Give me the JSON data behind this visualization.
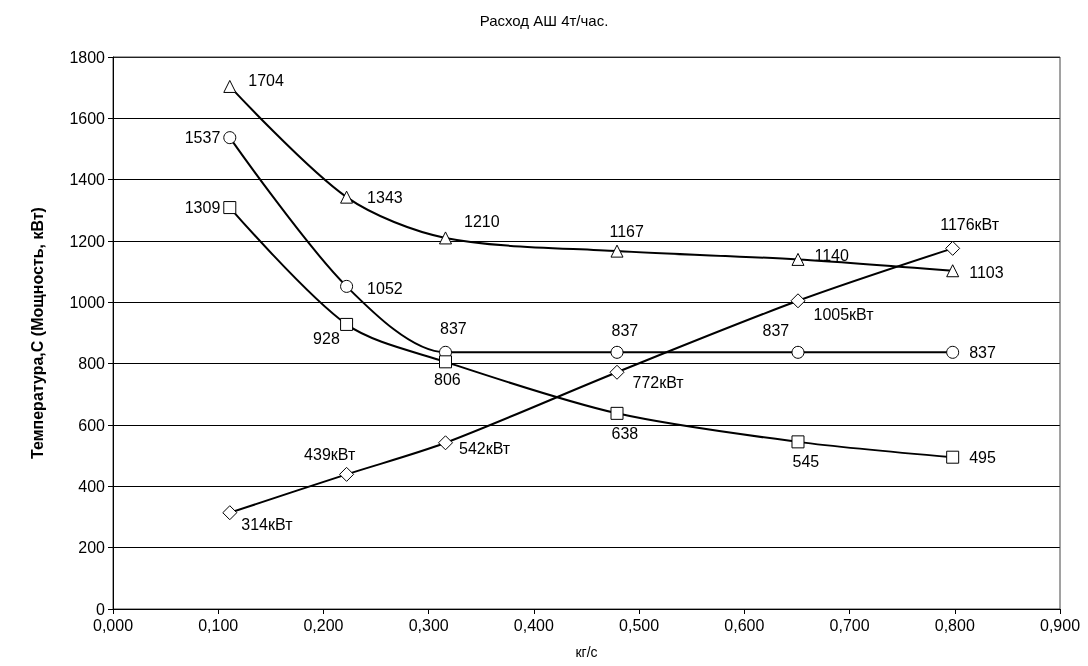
{
  "chart_data": {
    "type": "line",
    "title": "Расход АШ 4т/час.",
    "xlabel": "кг/с",
    "ylabel": "Температура,С (Мощность, кВт)",
    "x": [
      0.111,
      0.222,
      0.316,
      0.479,
      0.651,
      0.798
    ],
    "series": [
      {
        "color": "#000000",
        "marker": "triangle",
        "values": [
          1704,
          1343,
          1210,
          1167,
          1140,
          1103
        ],
        "value_labels": [
          "1704",
          "1343",
          "1210",
          "1167",
          "1140",
          "1103"
        ]
      },
      {
        "color": "#000000",
        "marker": "circle",
        "values": [
          1537,
          1052,
          837,
          837,
          837,
          837
        ],
        "value_labels": [
          "1537",
          "1052",
          "837",
          "837",
          "837",
          "837"
        ]
      },
      {
        "color": "#000000",
        "marker": "square",
        "values": [
          1309,
          928,
          806,
          638,
          545,
          495
        ],
        "value_labels": [
          "1309",
          "928",
          "806",
          "638",
          "545",
          "495"
        ]
      },
      {
        "color": "#000000",
        "marker": "diamond",
        "values": [
          314,
          439,
          542,
          772,
          1005,
          1176
        ],
        "value_labels": [
          "314кВт",
          "439кВт",
          "542кВт",
          "772кВт",
          "1005кВт",
          "1176кВт"
        ]
      }
    ],
    "xlim": [
      0,
      0.9
    ],
    "xticks": [
      {
        "value": 0,
        "label": "0,000"
      },
      {
        "value": 0.1,
        "label": "0,100"
      },
      {
        "value": 0.2,
        "label": "0,200"
      },
      {
        "value": 0.3,
        "label": "0,300"
      },
      {
        "value": 0.4,
        "label": "0,400"
      },
      {
        "value": 0.5,
        "label": "0,500"
      },
      {
        "value": 0.6,
        "label": "0,600"
      },
      {
        "value": 0.7,
        "label": "0,700"
      },
      {
        "value": 0.8,
        "label": "0,800"
      },
      {
        "value": 0.9,
        "label": "0,900"
      }
    ],
    "ylim": [
      0,
      1800
    ],
    "yticks": [
      0,
      200,
      400,
      600,
      800,
      1000,
      1200,
      1400,
      1600,
      1800
    ],
    "grid": "y",
    "line_style": "solid"
  }
}
